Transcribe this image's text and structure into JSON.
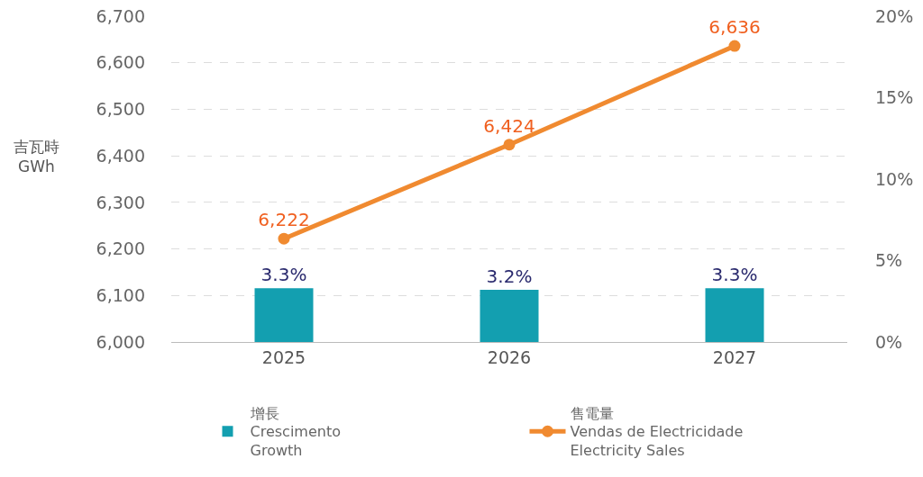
{
  "chart_data": {
    "type": "bar",
    "ylabel": "吉瓦時\nGWh",
    "categories": [
      "2025",
      "2026",
      "2027"
    ],
    "series": [
      {
        "name": "增長\nCrescimento\nGrowth",
        "axis": "y2",
        "color": "#139fb0",
        "values": [
          3.3,
          3.2,
          3.3
        ],
        "value_labels": [
          "3.3%",
          "3.2%",
          "3.3%"
        ]
      },
      {
        "name": "售電量\nVendas de Electricidade\nElectricity Sales",
        "type": "line",
        "color": "#f08a30",
        "values": [
          6222,
          6424,
          6636
        ],
        "value_labels": [
          "6,222",
          "6,424",
          "6,636"
        ]
      }
    ],
    "ylim": [
      6000,
      6700
    ],
    "yticks": [
      {
        "value": 6000,
        "label": "6,000"
      },
      {
        "value": 6100,
        "label": "6,100"
      },
      {
        "value": 6200,
        "label": "6,200"
      },
      {
        "value": 6300,
        "label": "6,300"
      },
      {
        "value": 6400,
        "label": "6,400"
      },
      {
        "value": 6500,
        "label": "6,500"
      },
      {
        "value": 6600,
        "label": "6,600"
      },
      {
        "value": 6700,
        "label": "6,700"
      }
    ],
    "y2lim": [
      0,
      20
    ],
    "y2ticks": [
      {
        "value": 0,
        "label": "0%"
      },
      {
        "value": 5,
        "label": "5%"
      },
      {
        "value": 10,
        "label": "10%"
      },
      {
        "value": 15,
        "label": "15%"
      },
      {
        "value": 20,
        "label": "20%"
      }
    ],
    "grid": "y",
    "legend": "bottom",
    "marker": "circle",
    "line_style": "solid"
  }
}
